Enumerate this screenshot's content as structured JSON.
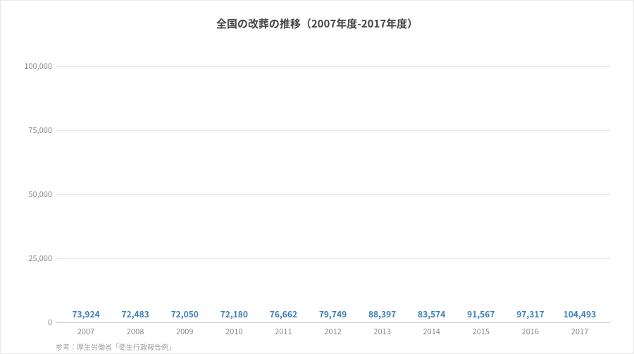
{
  "title": "全国の改葬の推移（2007年度-2017年度）",
  "title_fontsize": 15,
  "title_color": "#444444",
  "chart": {
    "type": "bar",
    "categories": [
      "2007",
      "2008",
      "2009",
      "2010",
      "2011",
      "2012",
      "2013",
      "2014",
      "2015",
      "2016",
      "2017"
    ],
    "values": [
      73924,
      72483,
      72050,
      72180,
      76662,
      79749,
      88397,
      83574,
      91567,
      97317,
      104493
    ],
    "value_labels": [
      "73,924",
      "72,483",
      "72,050",
      "72,180",
      "76,662",
      "79,749",
      "88,397",
      "83,574",
      "91,567",
      "97,317",
      "104,493"
    ],
    "bar_color": "#3d7fba",
    "value_label_color": "#3d7fba",
    "value_label_fontsize": 12,
    "ylim": [
      0,
      110000
    ],
    "ytick_step": 25000,
    "ytick_labels": [
      "0",
      "25,000",
      "50,000",
      "75,000",
      "100,000"
    ],
    "ytick_values": [
      0,
      25000,
      50000,
      75000,
      100000
    ],
    "grid_color": "#e9e9e9",
    "axis_color": "#cccccc",
    "background_color": "#ffffff",
    "bar_width_ratio": 0.76,
    "xaxis_fontsize": 11,
    "yaxis_fontsize": 11,
    "axis_label_color": "#888888"
  },
  "source_label": "参考：厚生労働省「衛生行政報告例」",
  "source_fontsize": 10,
  "source_color": "#a0a0a0"
}
